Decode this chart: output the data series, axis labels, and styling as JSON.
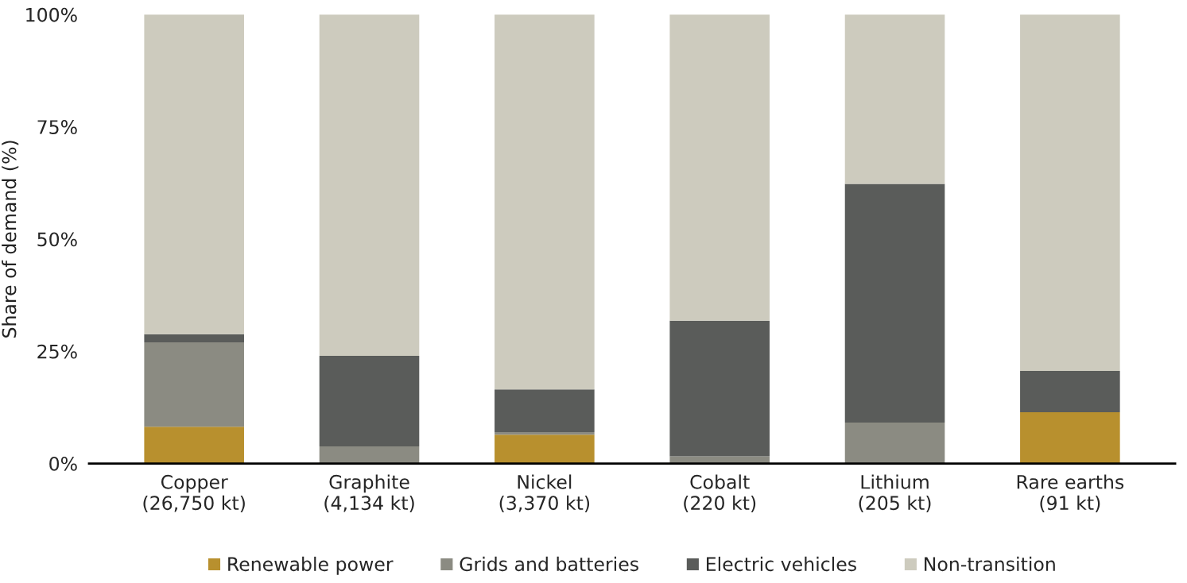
{
  "chart_data": {
    "type": "bar",
    "stacked": true,
    "ylabel": "Share of demand (%)",
    "categories": [
      "Copper\n(26,750 kt)",
      "Graphite\n(4,134 kt)",
      "Nickel\n(3,370 kt)",
      "Cobalt\n(220 kt)",
      "Lithium\n(205 kt)",
      "Rare earths\n(91 kt)"
    ],
    "series": [
      {
        "name": "Renewable power",
        "color": "#b8902e",
        "values": [
          8.2,
          0,
          6.4,
          0,
          0,
          11.4
        ]
      },
      {
        "name": "Grids and batteries",
        "color": "#8b8b82",
        "values": [
          18.8,
          3.8,
          0.6,
          1.6,
          9.1,
          0
        ]
      },
      {
        "name": "Electric vehicles",
        "color": "#5a5c5a",
        "values": [
          1.8,
          20.2,
          9.5,
          30.2,
          53.2,
          9.2
        ]
      },
      {
        "name": "Non-transition",
        "color": "#cdcbbe",
        "values": [
          71.2,
          76.0,
          83.5,
          68.2,
          37.7,
          79.4
        ]
      }
    ],
    "ylim": [
      0,
      100
    ],
    "yticks": [
      {
        "value": 0,
        "label": "0%"
      },
      {
        "value": 25,
        "label": "25%"
      },
      {
        "value": 50,
        "label": "50%"
      },
      {
        "value": 75,
        "label": "75%"
      },
      {
        "value": 100,
        "label": "100%"
      }
    ],
    "grid": false,
    "legend": "bottom"
  }
}
